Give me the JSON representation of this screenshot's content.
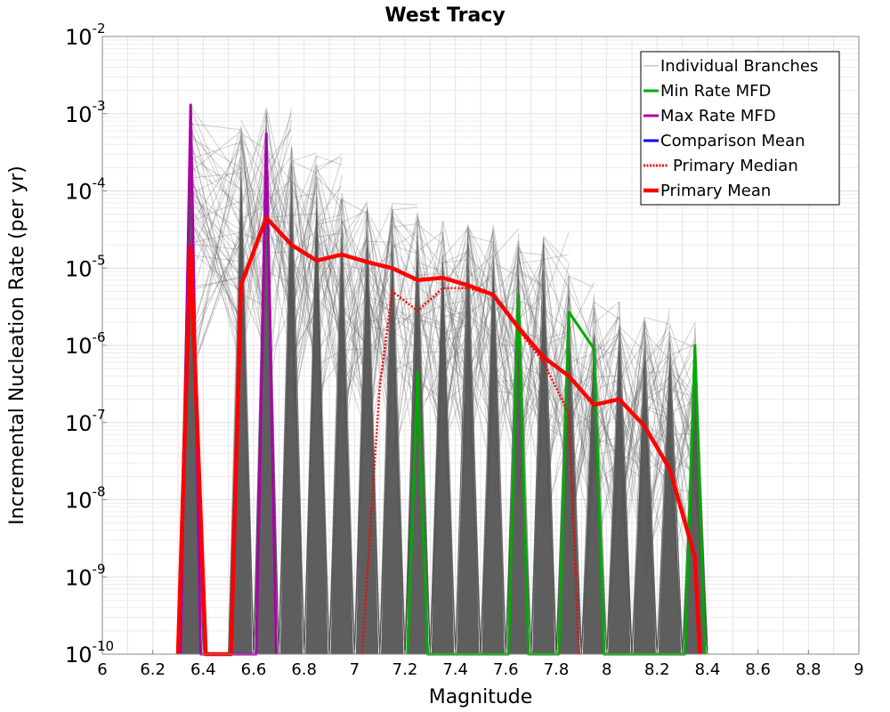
{
  "chart_data": {
    "type": "line",
    "title": "West Tracy",
    "xlabel": "Magnitude",
    "ylabel": "Incremental Nucleation Rate (per yr)",
    "xlim": [
      6,
      9
    ],
    "ylim": [
      1e-10,
      0.01
    ],
    "yscale": "log",
    "grid": true,
    "legend_position": "top-right",
    "x_ticks": [
      "6",
      "6.2",
      "6.4",
      "6.6",
      "6.8",
      "7",
      "7.2",
      "7.4",
      "7.6",
      "7.8",
      "8",
      "8.2",
      "8.4",
      "8.6",
      "8.8",
      "9"
    ],
    "y_ticks": [
      {
        "base": "10",
        "exp": "-10",
        "value": 1e-10
      },
      {
        "base": "10",
        "exp": "-9",
        "value": 1e-09
      },
      {
        "base": "10",
        "exp": "-8",
        "value": 1e-08
      },
      {
        "base": "10",
        "exp": "-7",
        "value": 1e-07
      },
      {
        "base": "10",
        "exp": "-6",
        "value": 1e-06
      },
      {
        "base": "10",
        "exp": "-5",
        "value": 1e-05
      },
      {
        "base": "10",
        "exp": "-4",
        "value": 0.0001
      },
      {
        "base": "10",
        "exp": "-3",
        "value": 0.001
      },
      {
        "base": "10",
        "exp": "-2",
        "value": 0.01
      }
    ],
    "series": [
      {
        "name": "Individual Branches",
        "color": "#555555",
        "style": "solid-thin",
        "note_values": "envelope of many branch curves; approximate spike peaks",
        "x": [
          6.35,
          6.55,
          6.65,
          6.75,
          6.85,
          6.95,
          7.05,
          7.15,
          7.25,
          7.35,
          7.45,
          7.55,
          7.65,
          7.75,
          7.85,
          7.95,
          8.05,
          8.15,
          8.25,
          8.35
        ],
        "y": [
          0.0013,
          0.0007,
          0.0013,
          0.0004,
          0.0003,
          0.0001,
          8e-05,
          7e-05,
          5e-05,
          5e-05,
          4e-05,
          4e-05,
          3e-05,
          3e-05,
          8e-06,
          5e-06,
          4e-06,
          3e-06,
          2e-06,
          2e-06
        ]
      },
      {
        "name": "Min Rate MFD",
        "color": "#00aa00",
        "style": "solid",
        "x": [
          7.21,
          7.25,
          7.29,
          7.61,
          7.65,
          7.69,
          7.81,
          7.85,
          7.95,
          7.99,
          8.31,
          8.35,
          8.39
        ],
        "y": [
          1e-10,
          4.5e-07,
          1e-10,
          1e-10,
          4.5e-06,
          1e-10,
          1e-10,
          2.7e-06,
          9e-07,
          1e-10,
          1e-10,
          1e-06,
          1e-10
        ]
      },
      {
        "name": "Max Rate MFD",
        "color": "#aa00aa",
        "style": "solid",
        "x": [
          6.31,
          6.35,
          6.39,
          6.61,
          6.65,
          6.69
        ],
        "y": [
          1e-10,
          0.0013,
          1e-10,
          1e-10,
          0.00055,
          1e-10
        ]
      },
      {
        "name": "Comparison Mean",
        "color": "#0000ff",
        "style": "solid",
        "x": [],
        "y": []
      },
      {
        "name": "Primary Median",
        "color": "#ff0000",
        "style": "dotted",
        "x": [
          7.03,
          7.1,
          7.15,
          7.25,
          7.35,
          7.45,
          7.55,
          7.65,
          7.75,
          7.85,
          7.89
        ],
        "y": [
          1e-10,
          3e-07,
          5e-06,
          2.8e-06,
          5.5e-06,
          5.5e-06,
          4.5e-06,
          1.6e-06,
          6e-07,
          1.3e-07,
          1e-10
        ]
      },
      {
        "name": "Primary Mean",
        "color": "#ff0000",
        "style": "solid-thick",
        "x": [
          6.3,
          6.35,
          6.41,
          6.51,
          6.55,
          6.65,
          6.75,
          6.85,
          6.95,
          7.05,
          7.15,
          7.25,
          7.35,
          7.45,
          7.55,
          7.65,
          7.75,
          7.85,
          7.95,
          8.05,
          8.15,
          8.25,
          8.35,
          8.37
        ],
        "y": [
          1e-10,
          1.9e-05,
          1e-10,
          1e-10,
          6e-06,
          4.5e-05,
          2e-05,
          1.25e-05,
          1.5e-05,
          1.2e-05,
          1e-05,
          7e-06,
          7.5e-06,
          6e-06,
          4.5e-06,
          1.7e-06,
          7e-07,
          4e-07,
          1.7e-07,
          2e-07,
          9e-08,
          2.5e-08,
          1.8e-09,
          1e-10
        ]
      }
    ]
  }
}
